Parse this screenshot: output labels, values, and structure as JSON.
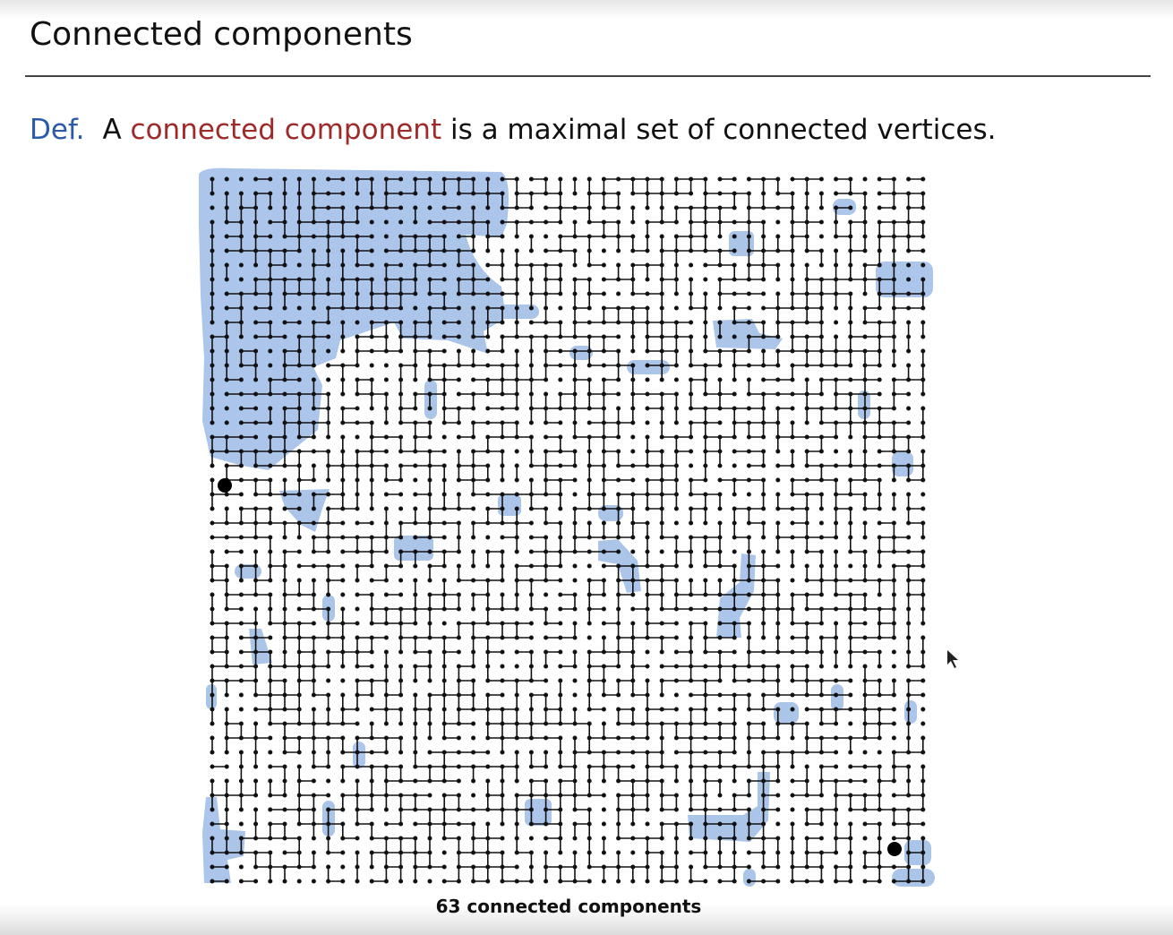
{
  "header": {
    "title": "Connected components"
  },
  "definition": {
    "label": "Def.",
    "lead": "A",
    "term": "connected component",
    "rest": "is a maximal set of connected vertices."
  },
  "figure": {
    "caption": "63 connected components"
  }
}
